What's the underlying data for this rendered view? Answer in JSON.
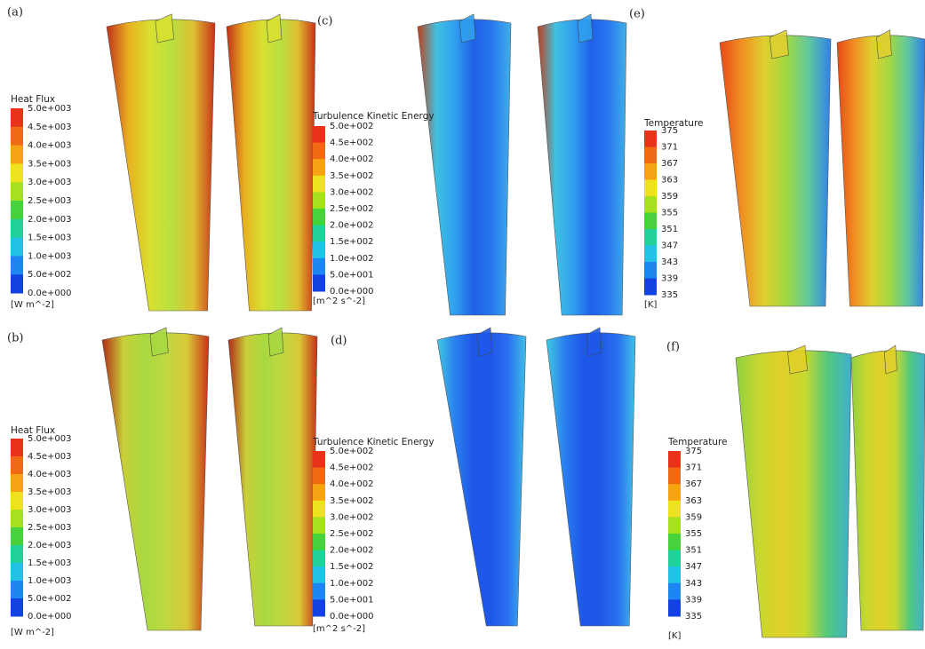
{
  "panels": [
    {
      "label": "(a)",
      "legend": {
        "title": "Heat Flux",
        "ticks": [
          "5.0e+003",
          "4.5e+003",
          "4.0e+003",
          "3.5e+003",
          "3.0e+003",
          "2.5e+003",
          "2.0e+003",
          "1.5e+003",
          "1.0e+003",
          "5.0e+002",
          "0.0e+000"
        ],
        "unit": "[W m^-2]"
      }
    },
    {
      "label": "(c)",
      "legend": {
        "title": "Turbulence Kinetic Energy",
        "ticks": [
          "5.0e+002",
          "4.5e+002",
          "4.0e+002",
          "3.5e+002",
          "3.0e+002",
          "2.5e+002",
          "2.0e+002",
          "1.5e+002",
          "1.0e+002",
          "5.0e+001",
          "0.0e+000"
        ],
        "unit": "[m^2 s^-2]"
      }
    },
    {
      "label": "(e)",
      "legend": {
        "title": "Temperature",
        "ticks": [
          "375",
          "371",
          "367",
          "363",
          "359",
          "355",
          "351",
          "347",
          "343",
          "339",
          "335"
        ],
        "unit": "[K]"
      }
    },
    {
      "label": "(b)",
      "legend": {
        "title": "Heat Flux",
        "ticks": [
          "5.0e+003",
          "4.5e+003",
          "4.0e+003",
          "3.5e+003",
          "3.0e+003",
          "2.5e+003",
          "2.0e+003",
          "1.5e+003",
          "1.0e+003",
          "5.0e+002",
          "0.0e+000"
        ],
        "unit": "[W m^-2]"
      }
    },
    {
      "label": "(d)",
      "legend": {
        "title": "Turbulence Kinetic Energy",
        "ticks": [
          "5.0e+002",
          "4.5e+002",
          "4.0e+002",
          "3.5e+002",
          "3.0e+002",
          "2.5e+002",
          "2.0e+002",
          "1.5e+002",
          "1.0e+002",
          "5.0e+001",
          "0.0e+000"
        ],
        "unit": "[m^2 s^-2]"
      }
    },
    {
      "label": "(f)",
      "legend": {
        "title": "Temperature",
        "ticks": [
          "375",
          "371",
          "367",
          "363",
          "359",
          "355",
          "351",
          "347",
          "343",
          "339",
          "335"
        ],
        "unit": "[K]"
      }
    }
  ]
}
